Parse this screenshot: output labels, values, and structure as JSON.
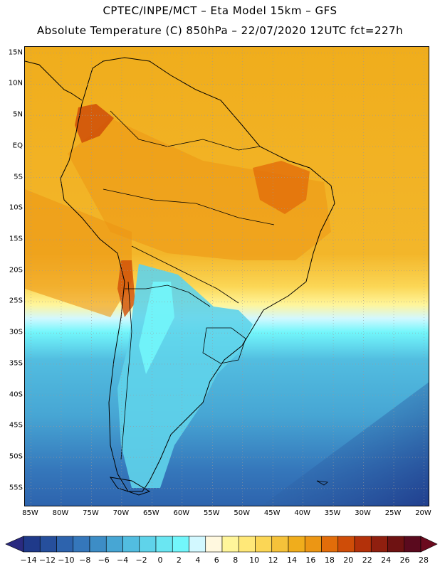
{
  "header": {
    "line1": "CPTEC/INPE/MCT –  Eta Model 15km – GFS",
    "line2": "Absolute Temperature (C) 850hPa – 22/07/2020 12UTC fct=227h"
  },
  "map": {
    "lat_labels": [
      "15N",
      "10N",
      "5N",
      "EQ",
      "5S",
      "10S",
      "15S",
      "20S",
      "25S",
      "30S",
      "35S",
      "40S",
      "45S",
      "50S",
      "55S"
    ],
    "lon_labels": [
      "85W",
      "80W",
      "75W",
      "70W",
      "65W",
      "60W",
      "55W",
      "50W",
      "45W",
      "40W",
      "35W",
      "30W",
      "25W",
      "20W"
    ],
    "lat_range_deg": [
      -58,
      16
    ],
    "lon_range_deg": [
      -86,
      -19
    ]
  },
  "colorbar": {
    "labels": [
      "-14",
      "-12",
      "-10",
      "-8",
      "-6",
      "-4",
      "-2",
      "0",
      "2",
      "4",
      "6",
      "8",
      "10",
      "12",
      "14",
      "16",
      "18",
      "20",
      "22",
      "24",
      "26",
      "28"
    ],
    "colors": [
      "#1f3a8a",
      "#264f9c",
      "#2d63ad",
      "#3577bb",
      "#3d8dc6",
      "#47a6d4",
      "#52bde0",
      "#5fd3ea",
      "#6ae6f2",
      "#72f6fb",
      "#d2f8ff",
      "#fff8df",
      "#fff59a",
      "#ffe878",
      "#fbd655",
      "#f5c23a",
      "#f0ad1c",
      "#ec9614",
      "#e26d0a",
      "#cf4d08",
      "#b3310a",
      "#8f1f0f",
      "#6e1212",
      "#5a0a1e"
    ],
    "arrow_left_color": "#2a2a80",
    "arrow_right_color": "#6b0a1e"
  }
}
